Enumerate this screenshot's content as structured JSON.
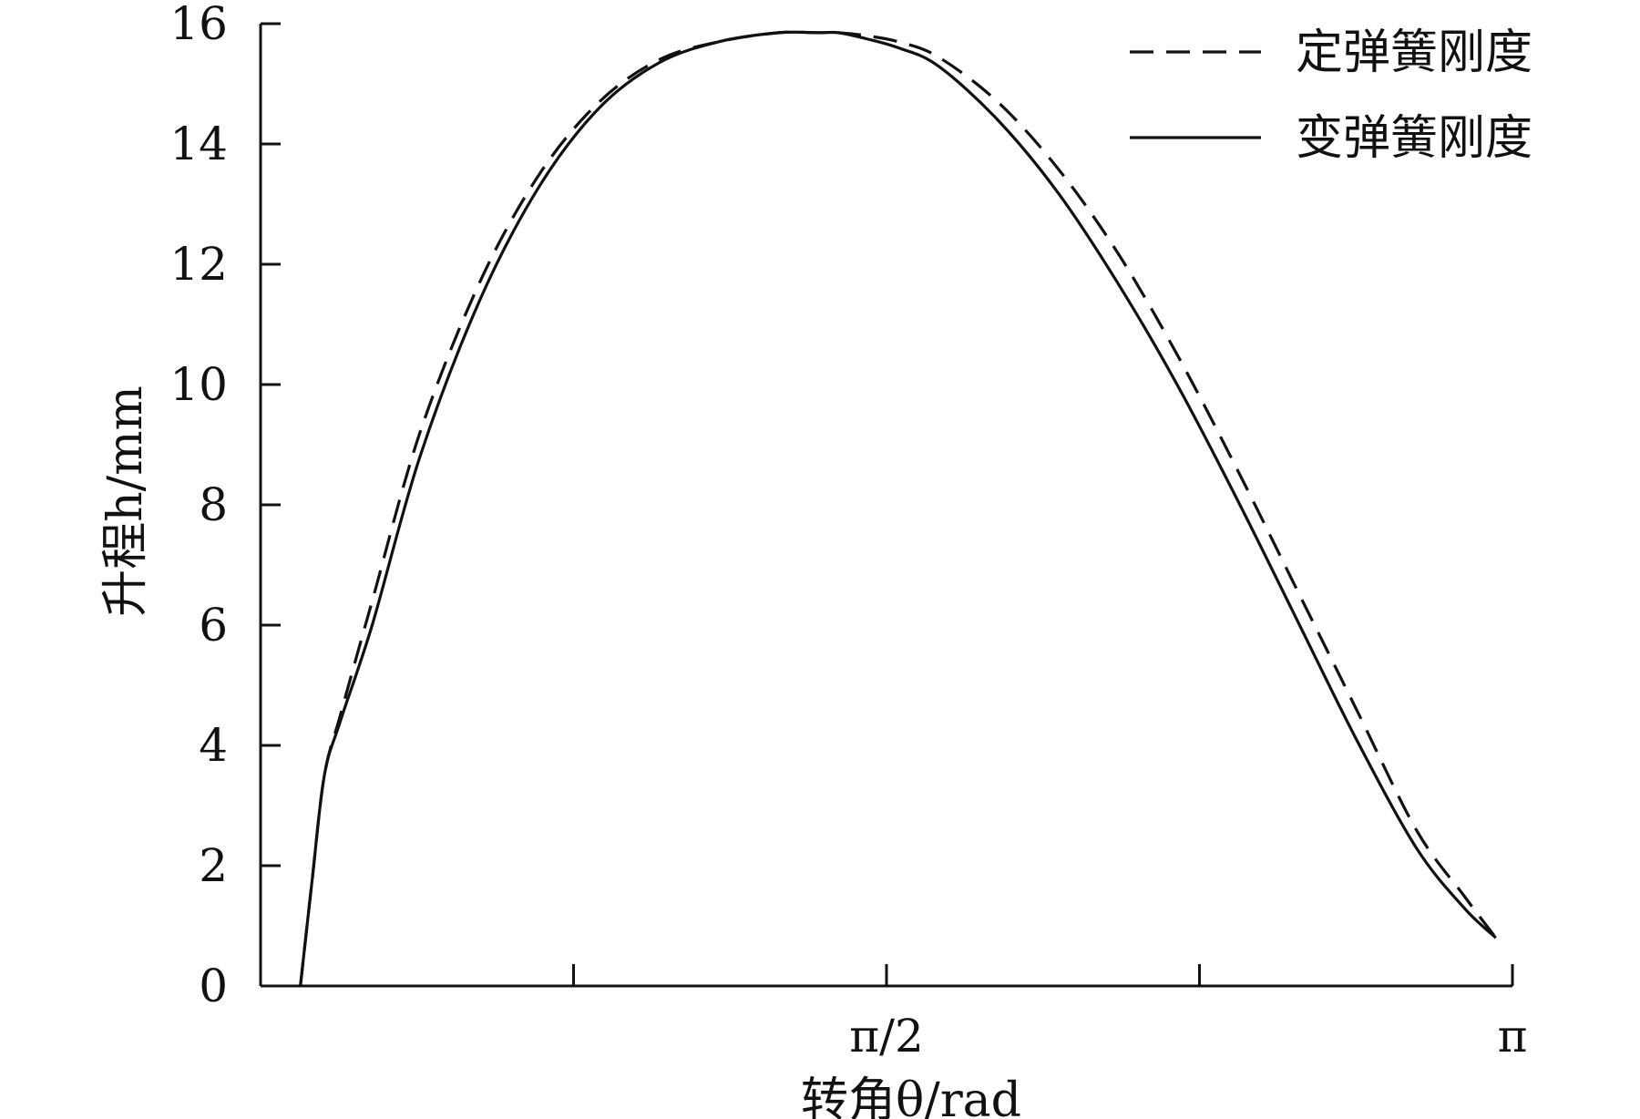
{
  "chart_data": {
    "type": "line",
    "xlabel": "转角θ/rad",
    "ylabel": "升程h/mm",
    "xlim": [
      0,
      3.1416
    ],
    "ylim": [
      0,
      16
    ],
    "yticks": [
      0,
      2,
      4,
      6,
      8,
      10,
      12,
      14,
      16
    ],
    "ytick_labels": [
      "0",
      "2",
      "4",
      "6",
      "8",
      "10",
      "12",
      "14",
      "16"
    ],
    "xticks": [
      0.7854,
      1.5708,
      2.3562,
      3.1416
    ],
    "xtick_labels": [
      "",
      "π/2",
      "",
      "π"
    ],
    "grid": false,
    "legend_position": "top-right",
    "series": [
      {
        "name": "定弹簧刚度",
        "style": "dashed",
        "x": [
          0.1,
          0.13,
          0.16,
          0.2,
          0.28,
          0.4,
          0.55,
          0.7,
          0.85,
          1.0,
          1.15,
          1.3,
          1.4,
          1.45,
          1.52,
          1.6,
          1.7,
          1.85,
          2.0,
          2.15,
          2.3,
          2.45,
          2.6,
          2.75,
          2.9,
          3.02,
          3.1
        ],
        "values": [
          0.0,
          1.8,
          3.5,
          4.5,
          6.4,
          9.2,
          11.7,
          13.5,
          14.7,
          15.4,
          15.7,
          15.85,
          15.85,
          15.85,
          15.8,
          15.7,
          15.45,
          14.7,
          13.6,
          12.2,
          10.5,
          8.6,
          6.6,
          4.6,
          2.6,
          1.5,
          0.8
        ],
        "color": "#111111"
      },
      {
        "name": "变弹簧刚度",
        "style": "solid",
        "x": [
          0.1,
          0.13,
          0.16,
          0.2,
          0.28,
          0.4,
          0.55,
          0.7,
          0.85,
          1.0,
          1.15,
          1.3,
          1.4,
          1.45,
          1.52,
          1.6,
          1.7,
          1.85,
          2.0,
          2.15,
          2.3,
          2.45,
          2.6,
          2.75,
          2.9,
          3.02,
          3.1
        ],
        "values": [
          0.0,
          1.8,
          3.5,
          4.4,
          6.0,
          8.8,
          11.4,
          13.3,
          14.6,
          15.35,
          15.7,
          15.85,
          15.85,
          15.85,
          15.75,
          15.6,
          15.3,
          14.4,
          13.2,
          11.7,
          10.0,
          8.1,
          6.1,
          4.1,
          2.3,
          1.3,
          0.8
        ],
        "color": "#111111"
      }
    ]
  }
}
